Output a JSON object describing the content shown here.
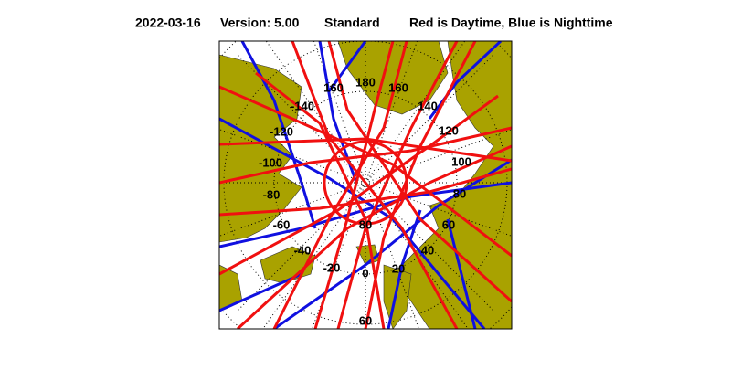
{
  "header": {
    "date": "2022-03-16",
    "version": "Version: 5.00",
    "product": "Standard",
    "legend": "Red is Daytime, Blue is Nighttime"
  },
  "map": {
    "longitude_labels": [
      "160",
      "180",
      "160",
      "140",
      "120",
      "100",
      "80",
      "60",
      "40",
      "20",
      "0",
      "-20",
      "-40",
      "-60",
      "-80",
      "-100",
      "-120",
      "-140"
    ],
    "latitude_labels": [
      "80",
      "60"
    ]
  }
}
